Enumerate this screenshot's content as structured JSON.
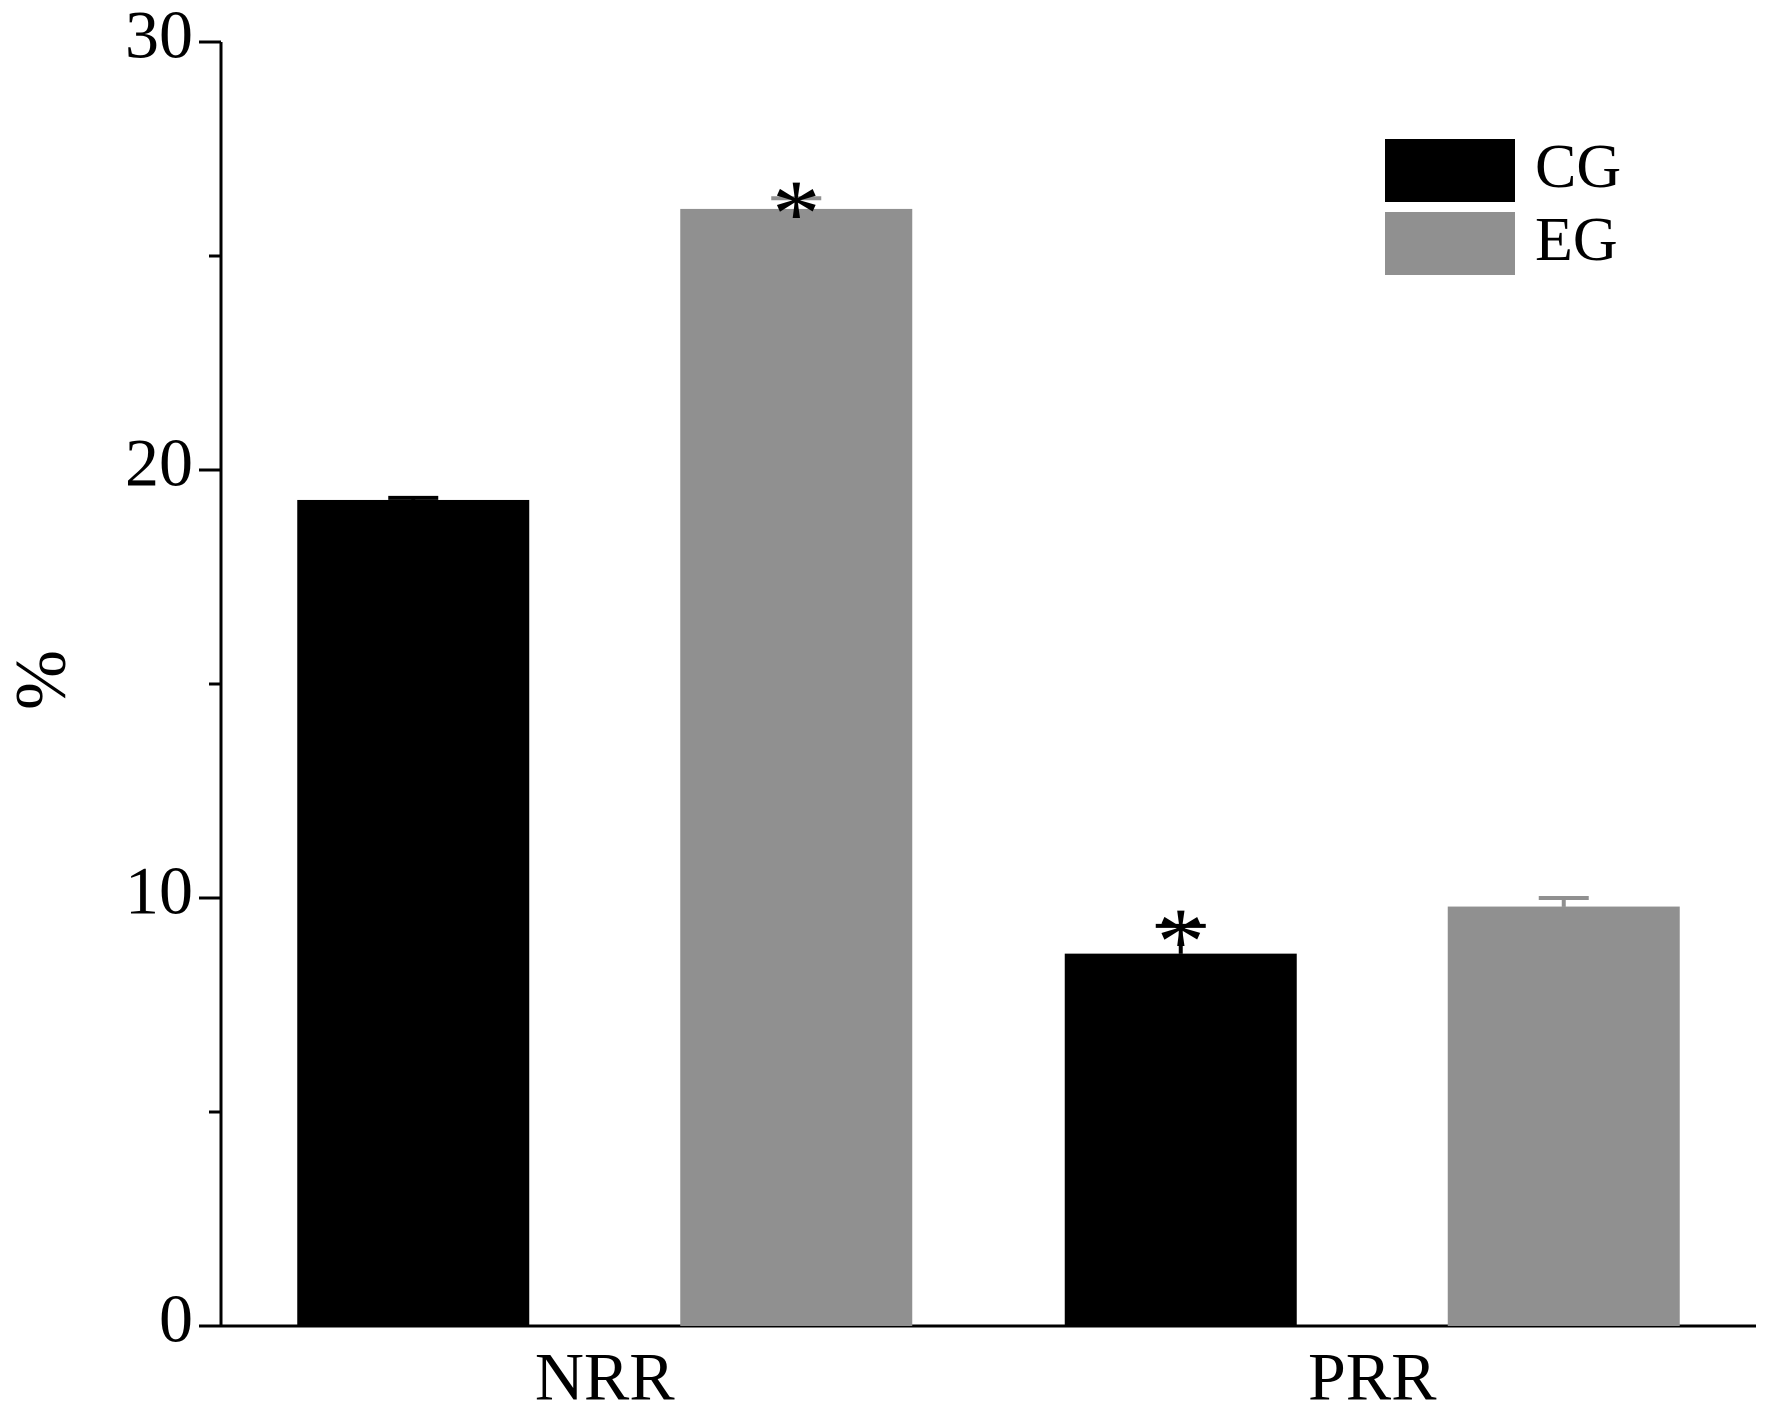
{
  "chart_data": {
    "type": "bar",
    "y_label": "%",
    "categories": [
      "NRR",
      "PRR"
    ],
    "series": [
      {
        "name": "CG",
        "color": "#000000",
        "values": [
          19.3,
          8.7
        ],
        "errors": [
          0.05,
          0.65
        ],
        "annotations": [
          null,
          "*"
        ]
      },
      {
        "name": "EG",
        "color": "#909090",
        "values": [
          26.1,
          9.8
        ],
        "errors": [
          0.25,
          0.2
        ],
        "annotations": [
          "*",
          null
        ]
      }
    ],
    "ylim": [
      0,
      30
    ],
    "yticks": [
      0,
      10,
      20,
      30
    ],
    "minor_yticks": [
      5,
      15,
      25
    ],
    "grid": false,
    "legend": "top-right"
  }
}
